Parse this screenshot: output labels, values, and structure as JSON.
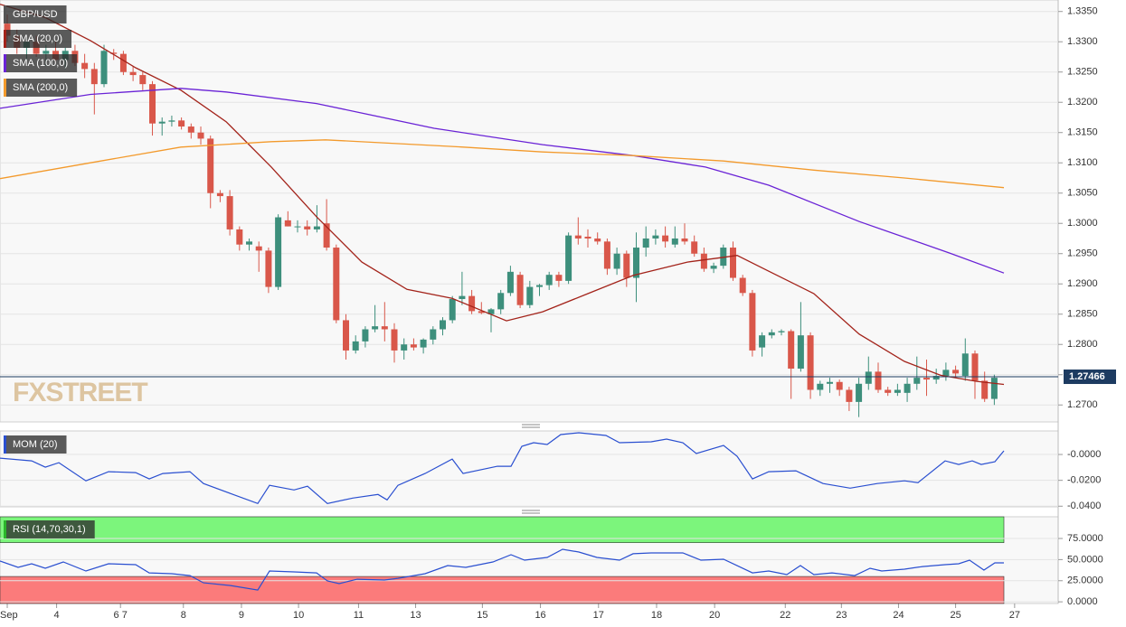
{
  "chart_data": [
    {
      "type": "candlestick",
      "title": "GBP/USD",
      "watermark": "FXSTREET",
      "up_color": "#3d8f7c",
      "down_color": "#d9574a",
      "open": [
        1.333,
        1.331,
        1.329,
        1.33,
        1.328,
        1.3285,
        1.327,
        1.3285,
        1.3265,
        1.3255,
        1.323,
        1.3282,
        1.328,
        1.325,
        1.3245,
        1.323,
        1.3165,
        1.3168,
        1.317,
        1.316,
        1.315,
        1.314,
        1.305,
        1.3045,
        1.299,
        1.2965,
        1.2962,
        1.2955,
        1.2895,
        1.3005,
        1.2995,
        1.2995,
        1.299,
        1.3,
        1.296,
        1.284,
        1.279,
        1.2805,
        1.2825,
        1.283,
        1.2825,
        1.279,
        1.28,
        1.2795,
        1.2808,
        1.2825,
        1.284,
        1.2875,
        1.288,
        1.2855,
        1.285,
        1.2858,
        1.2885,
        1.2915,
        1.2865,
        1.2895,
        1.2898,
        1.2915,
        1.2905,
        1.298,
        1.2978,
        1.2975,
        1.297,
        1.2925,
        1.295,
        1.291,
        1.296,
        1.2975,
        1.298,
        1.2965,
        1.2975,
        1.297,
        1.295,
        1.2925,
        1.293,
        1.296,
        1.291,
        1.2885,
        1.2795,
        1.2815,
        1.282,
        1.2822,
        1.276,
        1.2815,
        1.2725,
        1.2735,
        1.2738,
        1.2725,
        1.2705,
        1.2735,
        1.2755,
        1.2725,
        1.272,
        1.272,
        1.2735,
        1.2745,
        1.2742,
        1.2748,
        1.2758,
        1.2748,
        1.2785,
        1.274,
        1.271
      ],
      "high": [
        1.3345,
        1.332,
        1.3305,
        1.331,
        1.3295,
        1.33,
        1.329,
        1.3295,
        1.328,
        1.3265,
        1.3295,
        1.3288,
        1.3285,
        1.326,
        1.325,
        1.3235,
        1.3175,
        1.3178,
        1.3175,
        1.3165,
        1.316,
        1.3145,
        1.3055,
        1.3055,
        1.2995,
        1.2975,
        1.297,
        1.296,
        1.3015,
        1.302,
        1.3005,
        1.3005,
        1.303,
        1.304,
        1.2965,
        1.285,
        1.2815,
        1.283,
        1.2865,
        1.287,
        1.2835,
        1.281,
        1.281,
        1.281,
        1.283,
        1.2845,
        1.288,
        1.292,
        1.289,
        1.287,
        1.286,
        1.289,
        1.293,
        1.292,
        1.2905,
        1.29,
        1.292,
        1.292,
        1.2985,
        1.301,
        1.299,
        1.2985,
        1.2975,
        1.296,
        1.2955,
        1.2985,
        1.2995,
        1.299,
        1.2995,
        1.2995,
        1.3,
        1.298,
        1.296,
        1.2935,
        1.2965,
        1.297,
        1.2915,
        1.289,
        1.282,
        1.2825,
        1.2825,
        1.2825,
        1.287,
        1.282,
        1.274,
        1.2745,
        1.2742,
        1.273,
        1.2745,
        1.278,
        1.277,
        1.273,
        1.2735,
        1.2745,
        1.278,
        1.2775,
        1.276,
        1.277,
        1.2765,
        1.281,
        1.279,
        1.2755,
        1.275
      ],
      "low": [
        1.33,
        1.328,
        1.327,
        1.3275,
        1.326,
        1.3265,
        1.3255,
        1.326,
        1.324,
        1.318,
        1.3225,
        1.327,
        1.3245,
        1.3235,
        1.322,
        1.3145,
        1.3145,
        1.316,
        1.3155,
        1.314,
        1.313,
        1.3025,
        1.3035,
        1.298,
        1.2955,
        1.2955,
        1.292,
        1.2885,
        1.289,
        1.2995,
        1.2985,
        1.298,
        1.2985,
        1.2955,
        1.2835,
        1.2775,
        1.2785,
        1.2795,
        1.282,
        1.2805,
        1.277,
        1.2775,
        1.279,
        1.2785,
        1.28,
        1.2815,
        1.2835,
        1.2865,
        1.285,
        1.285,
        1.282,
        1.285,
        1.288,
        1.286,
        1.286,
        1.288,
        1.289,
        1.2895,
        1.29,
        1.2965,
        1.296,
        1.2965,
        1.2915,
        1.2915,
        1.2895,
        1.287,
        1.2945,
        1.2965,
        1.296,
        1.296,
        1.2965,
        1.2945,
        1.292,
        1.2918,
        1.2925,
        1.2905,
        1.288,
        1.278,
        1.278,
        1.281,
        1.2815,
        1.271,
        1.2755,
        1.271,
        1.2715,
        1.272,
        1.2715,
        1.269,
        1.268,
        1.2725,
        1.272,
        1.2715,
        1.2715,
        1.2705,
        1.2725,
        1.2715,
        1.2735,
        1.274,
        1.2745,
        1.274,
        1.271,
        1.2705,
        1.27
      ],
      "close": [
        1.331,
        1.329,
        1.33,
        1.328,
        1.3285,
        1.327,
        1.3285,
        1.3265,
        1.3255,
        1.323,
        1.3285,
        1.328,
        1.325,
        1.3245,
        1.323,
        1.3165,
        1.3168,
        1.317,
        1.316,
        1.315,
        1.314,
        1.305,
        1.3045,
        1.299,
        1.2965,
        1.297,
        1.2955,
        1.2895,
        1.301,
        1.2995,
        1.2995,
        1.299,
        1.2995,
        1.296,
        1.284,
        1.279,
        1.2805,
        1.2825,
        1.283,
        1.2825,
        1.279,
        1.28,
        1.2795,
        1.2808,
        1.2825,
        1.284,
        1.2875,
        1.288,
        1.2855,
        1.2852,
        1.2858,
        1.2885,
        1.292,
        1.2865,
        1.2895,
        1.2898,
        1.2915,
        1.2905,
        1.298,
        1.2975,
        1.2975,
        1.297,
        1.2925,
        1.295,
        1.291,
        1.296,
        1.2975,
        1.298,
        1.297,
        1.2975,
        1.297,
        1.295,
        1.2925,
        1.293,
        1.296,
        1.291,
        1.2885,
        1.279,
        1.2815,
        1.282,
        1.2822,
        1.276,
        1.2815,
        1.2725,
        1.2735,
        1.2738,
        1.2725,
        1.2705,
        1.2735,
        1.2755,
        1.2725,
        1.272,
        1.2725,
        1.2735,
        1.2745,
        1.2742,
        1.2748,
        1.2758,
        1.2752,
        1.2785,
        1.274,
        1.271,
        1.2745
      ],
      "series": [
        {
          "name": "SMA (20,0)",
          "color": "#a3231a",
          "x": [
            -0.75,
            3.93,
            8.6,
            13.27,
            17.94,
            22.62,
            27.29,
            31.96,
            36.64,
            41.31,
            45.98,
            51.59,
            55.33,
            60.0,
            64.67,
            70.28,
            74.02,
            75.42,
            78.69,
            83.36,
            88.04,
            92.71,
            96.45,
            100.19,
            102.99
          ],
          "values": [
            1.3362,
            1.334,
            1.3302,
            1.3257,
            1.322,
            1.3168,
            1.3093,
            1.3011,
            1.2936,
            1.2891,
            1.2876,
            1.2839,
            1.2854,
            1.2884,
            1.2914,
            1.2936,
            1.2944,
            1.2947,
            1.2921,
            1.2884,
            1.2817,
            1.2772,
            1.2749,
            1.2739,
            1.2734
          ]
        },
        {
          "name": "SMA (100,0)",
          "color": "#6a23d6",
          "x": [
            -0.75,
            8.6,
            17.94,
            22.62,
            31.96,
            44.11,
            55.33,
            64.67,
            72.15,
            78.69,
            88.04,
            97.38,
            102.99
          ],
          "values": [
            1.319,
            1.3213,
            1.3223,
            1.3217,
            1.3198,
            1.3157,
            1.313,
            1.3112,
            1.3093,
            1.3063,
            1.3003,
            1.2951,
            1.2918
          ]
        },
        {
          "name": "SMA (200,0)",
          "color": "#f39a2c",
          "x": [
            -0.75,
            8.6,
            17.94,
            27.29,
            32.9,
            45.98,
            55.33,
            64.67,
            74.02,
            83.36,
            92.71,
            102.99
          ],
          "values": [
            1.3074,
            1.31,
            1.3126,
            1.3135,
            1.3138,
            1.3127,
            1.3118,
            1.3112,
            1.3103,
            1.3088,
            1.3075,
            1.3059
          ]
        }
      ],
      "last_price": {
        "value": 1.27466,
        "label": "1.27466"
      },
      "ylim": [
        1.2672,
        1.3369
      ],
      "yticks": [
        {
          "value": 1.27,
          "label": "1.2700"
        },
        {
          "value": 1.275,
          "label": "1.2750"
        },
        {
          "value": 1.28,
          "label": "1.2800"
        },
        {
          "value": 1.285,
          "label": "1.2850"
        },
        {
          "value": 1.29,
          "label": "1.2900"
        },
        {
          "value": 1.295,
          "label": "1.2950"
        },
        {
          "value": 1.3,
          "label": "1.3000"
        },
        {
          "value": 1.305,
          "label": "1.3050"
        },
        {
          "value": 1.31,
          "label": "1.3100"
        },
        {
          "value": 1.315,
          "label": "1.3150"
        },
        {
          "value": 1.32,
          "label": "1.3200"
        },
        {
          "value": 1.325,
          "label": "1.3250"
        },
        {
          "value": 1.33,
          "label": "1.3300"
        },
        {
          "value": 1.335,
          "label": "1.3350"
        }
      ],
      "xlim": [
        -0.75,
        108.6
      ],
      "xticks": [
        {
          "value": 0,
          "label": "Sep"
        },
        {
          "value": 5.1,
          "label": "4"
        },
        {
          "value": 11.7,
          "label": "6 7"
        },
        {
          "value": 18.2,
          "label": "8"
        },
        {
          "value": 24.2,
          "label": "9"
        },
        {
          "value": 30.1,
          "label": "10"
        },
        {
          "value": 36.3,
          "label": "11"
        },
        {
          "value": 42.2,
          "label": "13"
        },
        {
          "value": 49.1,
          "label": "15"
        },
        {
          "value": 55.1,
          "label": "16"
        },
        {
          "value": 61.1,
          "label": "17"
        },
        {
          "value": 67.1,
          "label": "18"
        },
        {
          "value": 73.1,
          "label": "20"
        },
        {
          "value": 80.4,
          "label": "22"
        },
        {
          "value": 86.2,
          "label": "23"
        },
        {
          "value": 92.1,
          "label": "24"
        },
        {
          "value": 98.0,
          "label": "25"
        },
        {
          "value": 104.1,
          "label": "27"
        }
      ],
      "grid": true
    },
    {
      "type": "line",
      "title": "MOM (20)",
      "color": "#2a4fd0",
      "x": [
        -0.75,
        2.52,
        3.93,
        5.33,
        8.13,
        10.47,
        13.27,
        14.67,
        16.07,
        18.88,
        20.28,
        23.08,
        25.89,
        27.1,
        29.63,
        31.03,
        33.08,
        35.7,
        38.32,
        39.25,
        40.37,
        43.18,
        45.98,
        47.1,
        50.65,
        52.06,
        53.18,
        54.39,
        55.79,
        57.2,
        59.07,
        61.87,
        63.27,
        66.54,
        68.13,
        69.81,
        71.21,
        74.02,
        75.42,
        77.01,
        78.69,
        81.5,
        84.3,
        87.1,
        89.91,
        92.71,
        94.11,
        96.92,
        98.32,
        99.72,
        100.65,
        102.06,
        102.99
      ],
      "values": [
        -0.0028,
        -0.0049,
        -0.0098,
        -0.0063,
        -0.0204,
        -0.0133,
        -0.014,
        -0.0189,
        -0.0147,
        -0.0133,
        -0.0225,
        -0.0302,
        -0.0379,
        -0.0239,
        -0.0274,
        -0.0246,
        -0.0379,
        -0.0337,
        -0.0309,
        -0.0351,
        -0.0239,
        -0.0147,
        -0.0035,
        -0.0147,
        -0.0091,
        -0.0091,
        0.0063,
        0.0091,
        0.0077,
        0.0154,
        0.0168,
        0.0147,
        0.0091,
        0.0098,
        0.0119,
        0.0091,
        0.0007,
        0.007,
        -0.0014,
        -0.0189,
        -0.0133,
        -0.0126,
        -0.0225,
        -0.026,
        -0.0225,
        -0.0204,
        -0.0218,
        -0.0049,
        -0.0077,
        -0.0049,
        -0.0077,
        -0.0056,
        0.0028
      ],
      "ylim": [
        -0.0405,
        0.0182
      ],
      "yticks": [
        {
          "value": 0,
          "label": "-0.0000"
        },
        {
          "value": -0.02,
          "label": "-0.0200"
        },
        {
          "value": -0.04,
          "label": "-0.0400"
        }
      ],
      "grid": true
    },
    {
      "type": "rsi",
      "title": "RSI (14,70,30,1)",
      "color": "#2a4fd0",
      "overbought": 70,
      "oversold": 30,
      "overbought_color": "#7cf57c",
      "oversold_color": "#fb7b7b",
      "x": [
        -0.75,
        1.12,
        2.52,
        3.93,
        5.79,
        8.13,
        10.47,
        13.27,
        14.67,
        17.01,
        18.88,
        20.28,
        23.08,
        25.89,
        27.1,
        29.63,
        31.96,
        33.08,
        34.3,
        36.17,
        38.97,
        40.37,
        43.18,
        45.51,
        47.38,
        50.19,
        52.06,
        53.46,
        55.79,
        57.38,
        59.07,
        60.93,
        63.27,
        64.67,
        66.54,
        69.81,
        71.68,
        74.02,
        77.01,
        78.69,
        80.56,
        81.96,
        83.36,
        85.23,
        87.57,
        89.16,
        90.37,
        92.71,
        94.58,
        96.92,
        98.32,
        99.44,
        100.93,
        102.06,
        102.99
      ],
      "values": [
        48.3,
        40.8,
        45.1,
        39.7,
        47.2,
        36.5,
        45.1,
        44.0,
        34.3,
        33.3,
        31.1,
        22.5,
        19.3,
        13.9,
        36.5,
        35.4,
        34.3,
        24.7,
        21.5,
        26.8,
        25.8,
        27.9,
        33.3,
        42.9,
        40.8,
        47.2,
        55.8,
        49.4,
        52.6,
        62.2,
        59.0,
        52.6,
        49.4,
        56.9,
        57.9,
        57.9,
        49.4,
        50.4,
        34.3,
        36.5,
        32.2,
        42.9,
        32.2,
        34.3,
        31.1,
        39.7,
        36.5,
        38.6,
        41.8,
        44.0,
        45.1,
        49.4,
        37.6,
        46.1,
        46.1
      ],
      "ylim": [
        -2,
        100.7
      ],
      "yticks": [
        {
          "value": 75,
          "label": "75.0000"
        },
        {
          "value": 50,
          "label": "50.0000"
        },
        {
          "value": 25,
          "label": "25.0000"
        },
        {
          "value": 0,
          "label": "0.0000"
        }
      ],
      "grid": true
    }
  ]
}
